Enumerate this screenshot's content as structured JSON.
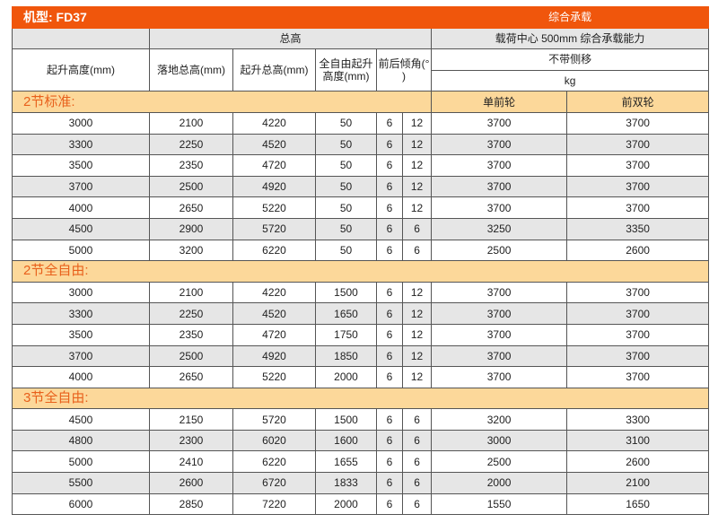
{
  "title": {
    "model": "机型: FD37",
    "combined": "综合承载"
  },
  "header": {
    "total_height": "总高",
    "load_center": "载荷中心  500mm  综合承载能力",
    "lift_height": "起升高度(mm)",
    "lowered_height": "落地总高(mm)",
    "raised_height": "起升总高(mm)",
    "free_lift": "全自由起升高度(mm)",
    "tilt": "前后倾角(°  )",
    "no_sideshift": "不带侧移",
    "unit": "kg",
    "single_wheel": "单前轮",
    "dual_wheel": "前双轮"
  },
  "sections": [
    {
      "name": "2节标准:",
      "rows": [
        [
          "3000",
          "2100",
          "4220",
          "50",
          "6",
          "12",
          "3700",
          "3700"
        ],
        [
          "3300",
          "2250",
          "4520",
          "50",
          "6",
          "12",
          "3700",
          "3700"
        ],
        [
          "3500",
          "2350",
          "4720",
          "50",
          "6",
          "12",
          "3700",
          "3700"
        ],
        [
          "3700",
          "2500",
          "4920",
          "50",
          "6",
          "12",
          "3700",
          "3700"
        ],
        [
          "4000",
          "2650",
          "5220",
          "50",
          "6",
          "12",
          "3700",
          "3700"
        ],
        [
          "4500",
          "2900",
          "5720",
          "50",
          "6",
          "6",
          "3250",
          "3350"
        ],
        [
          "5000",
          "3200",
          "6220",
          "50",
          "6",
          "6",
          "2500",
          "2600"
        ]
      ]
    },
    {
      "name": "2节全自由:",
      "rows": [
        [
          "3000",
          "2100",
          "4220",
          "1500",
          "6",
          "12",
          "3700",
          "3700"
        ],
        [
          "3300",
          "2250",
          "4520",
          "1650",
          "6",
          "12",
          "3700",
          "3700"
        ],
        [
          "3500",
          "2350",
          "4720",
          "1750",
          "6",
          "12",
          "3700",
          "3700"
        ],
        [
          "3700",
          "2500",
          "4920",
          "1850",
          "6",
          "12",
          "3700",
          "3700"
        ],
        [
          "4000",
          "2650",
          "5220",
          "2000",
          "6",
          "12",
          "3700",
          "3700"
        ]
      ]
    },
    {
      "name": "3节全自由:",
      "rows": [
        [
          "4500",
          "2150",
          "5720",
          "1500",
          "6",
          "6",
          "3200",
          "3300"
        ],
        [
          "4800",
          "2300",
          "6020",
          "1600",
          "6",
          "6",
          "3000",
          "3100"
        ],
        [
          "5000",
          "2410",
          "6220",
          "1655",
          "6",
          "6",
          "2500",
          "2600"
        ],
        [
          "5500",
          "2600",
          "6720",
          "1833",
          "6",
          "6",
          "2000",
          "2100"
        ],
        [
          "6000",
          "2850",
          "7220",
          "2000",
          "6",
          "6",
          "1550",
          "1650"
        ]
      ]
    }
  ],
  "colors": {
    "header": "#f0560c",
    "section": "#fcd89a",
    "section_text": "#e8601c",
    "alt_row": "#e6e6e6"
  }
}
